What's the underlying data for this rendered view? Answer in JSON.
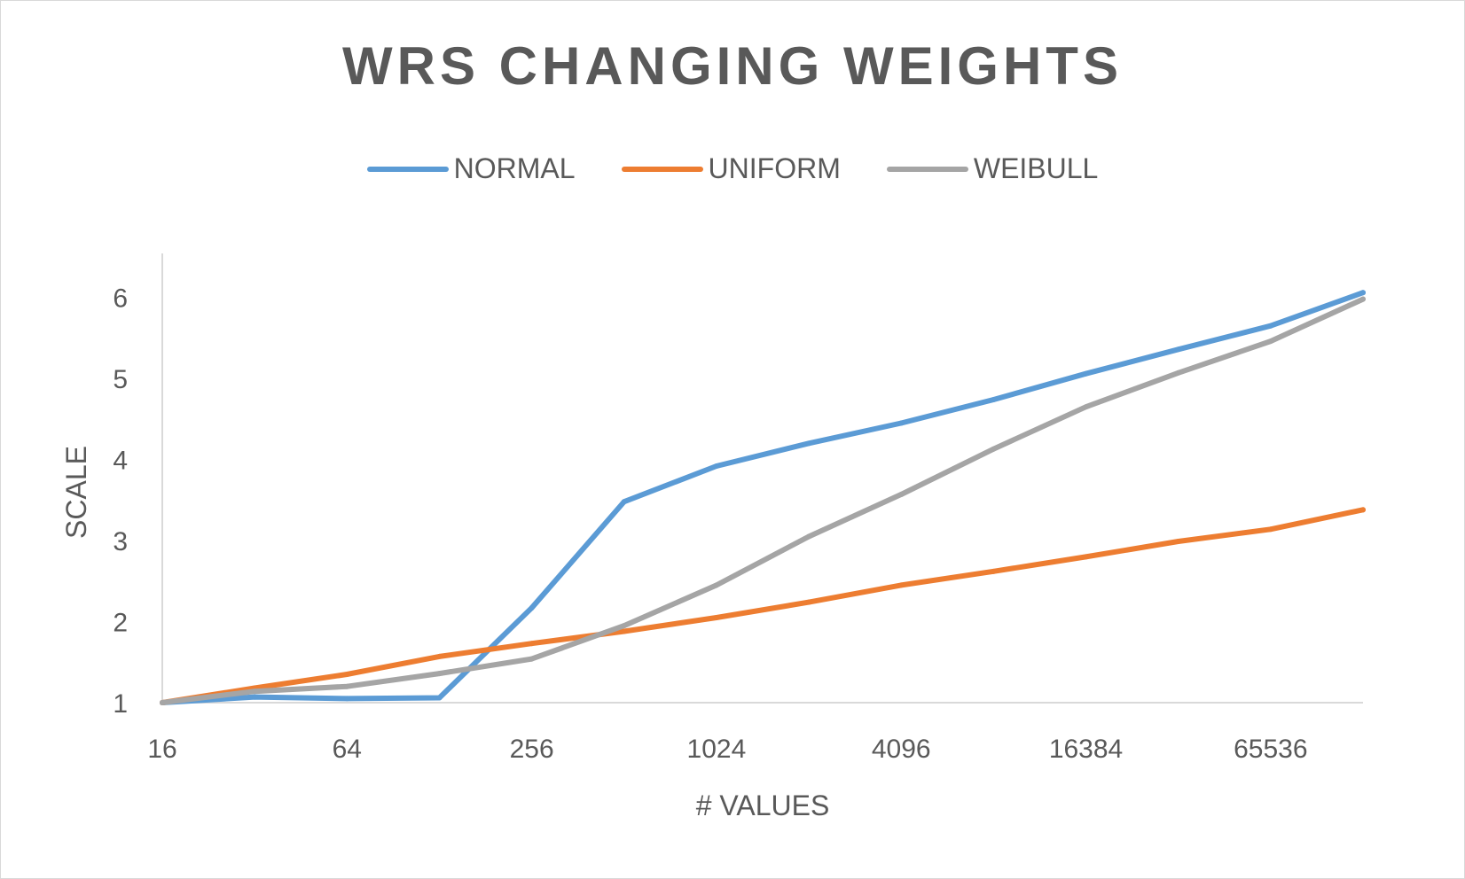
{
  "chart_data": {
    "type": "line",
    "title": "WRS CHANGING WEIGHTS",
    "xlabel": "# VALUES",
    "ylabel": "SCALE",
    "x_scale": "log2",
    "x": [
      16,
      32,
      64,
      128,
      256,
      512,
      1024,
      2048,
      4096,
      8192,
      16384,
      32768,
      65536,
      131072
    ],
    "x_tick_labels": [
      "16",
      "64",
      "256",
      "1024",
      "4096",
      "16384",
      "65536"
    ],
    "y_tick_labels": [
      "1",
      "2",
      "3",
      "4",
      "5",
      "6"
    ],
    "ylim": [
      1,
      6.5
    ],
    "grid": false,
    "legend_position": "top",
    "series": [
      {
        "name": "NORMAL",
        "color": "#5b9bd5",
        "values": [
          1.0,
          1.07,
          1.05,
          1.06,
          2.17,
          3.48,
          3.92,
          4.2,
          4.45,
          4.74,
          5.06,
          5.36,
          5.65,
          6.06
        ]
      },
      {
        "name": "UNIFORM",
        "color": "#ed7d31",
        "values": [
          1.0,
          1.18,
          1.35,
          1.57,
          1.73,
          1.88,
          2.05,
          2.24,
          2.45,
          2.62,
          2.8,
          2.99,
          3.14,
          3.38
        ]
      },
      {
        "name": "WEIBULL",
        "color": "#a5a5a5",
        "values": [
          1.0,
          1.14,
          1.2,
          1.36,
          1.54,
          1.95,
          2.45,
          3.05,
          3.57,
          4.13,
          4.65,
          5.07,
          5.46,
          5.98
        ]
      }
    ]
  }
}
